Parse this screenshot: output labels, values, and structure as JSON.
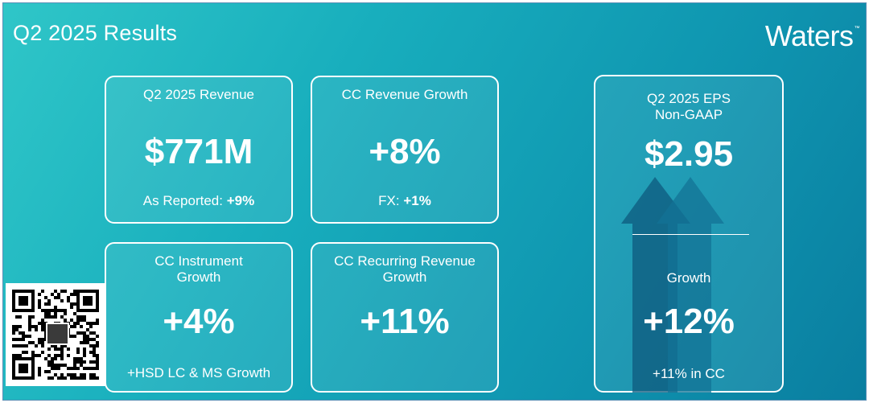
{
  "header": {
    "title": "Q2 2025 Results",
    "brand": "Waters",
    "brand_mark": "™"
  },
  "cards": {
    "revenue": {
      "label": "Q2 2025 Revenue",
      "value": "$771M",
      "foot_text": "As Reported: ",
      "foot_value": "+9%"
    },
    "cc_revenue": {
      "label": "CC Revenue Growth",
      "value": "+8%",
      "foot_text": "FX: ",
      "foot_value": "+1%"
    },
    "cc_instrument": {
      "label_line1": "CC Instrument",
      "label_line2": "Growth",
      "value": "+4%",
      "foot_text": "+HSD LC & MS Growth"
    },
    "cc_recurring": {
      "label_line1": "CC Recurring Revenue",
      "label_line2": "Growth",
      "value": "+11%"
    },
    "eps": {
      "label_line1": "Q2 2025 EPS",
      "label_line2": "Non-GAAP",
      "value": "$2.95",
      "growth_label": "Growth",
      "growth_value": "+12%",
      "foot_text": "+11% in CC"
    }
  },
  "colors": {
    "accent_start": "#2fc6c8",
    "accent_end": "#0a7ea0",
    "arrow_dark": "#0e5a7d",
    "arrow_mid": "#137396"
  },
  "icons": {
    "qr": "qr-code-icon",
    "arrows": "growth-arrows-icon"
  }
}
